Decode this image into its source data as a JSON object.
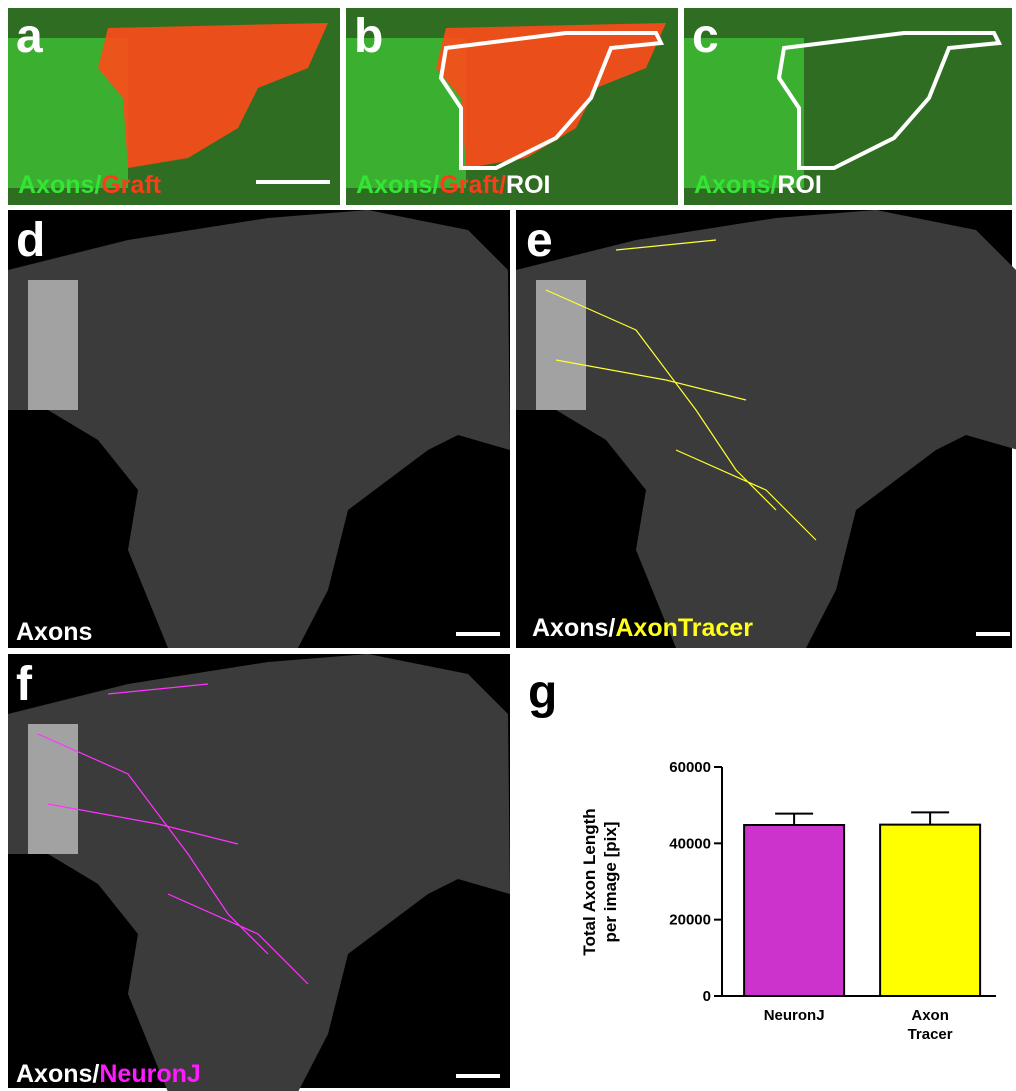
{
  "panels": [
    {
      "letter": "a",
      "caption": [
        {
          "text": "Axons/",
          "color": "#33e633"
        },
        {
          "text": "Graft",
          "color": "#ff3b1a"
        }
      ]
    },
    {
      "letter": "b",
      "caption": [
        {
          "text": "Axons/",
          "color": "#33e633"
        },
        {
          "text": "Graft/",
          "color": "#ff3b1a"
        },
        {
          "text": "ROI",
          "color": "#ffffff"
        }
      ]
    },
    {
      "letter": "c",
      "caption": [
        {
          "text": "Axons/",
          "color": "#33e633"
        },
        {
          "text": "ROI",
          "color": "#ffffff"
        }
      ]
    },
    {
      "letter": "d",
      "caption": [
        {
          "text": "Axons",
          "color": "#ffffff"
        }
      ]
    },
    {
      "letter": "e",
      "caption": [
        {
          "text": "Axons/",
          "color": "#ffffff"
        },
        {
          "text": "AxonTracer",
          "color": "#ffff1a"
        }
      ]
    },
    {
      "letter": "f",
      "caption": [
        {
          "text": "Axons/",
          "color": "#ffffff"
        },
        {
          "text": "NeuronJ",
          "color": "#ff1aff"
        }
      ]
    },
    {
      "letter": "g"
    }
  ],
  "chart_data": {
    "type": "bar",
    "ylabel": [
      "Total Axon Length",
      "per image [pix]"
    ],
    "categories": [
      "NeuronJ",
      "Axon Tracer"
    ],
    "values": [
      44800,
      44900
    ],
    "errors": [
      3000,
      3200
    ],
    "colors": [
      "#cc33cc",
      "#ffff00"
    ],
    "ylim": [
      0,
      60000
    ],
    "yticks": [
      0,
      20000,
      40000,
      60000
    ]
  }
}
